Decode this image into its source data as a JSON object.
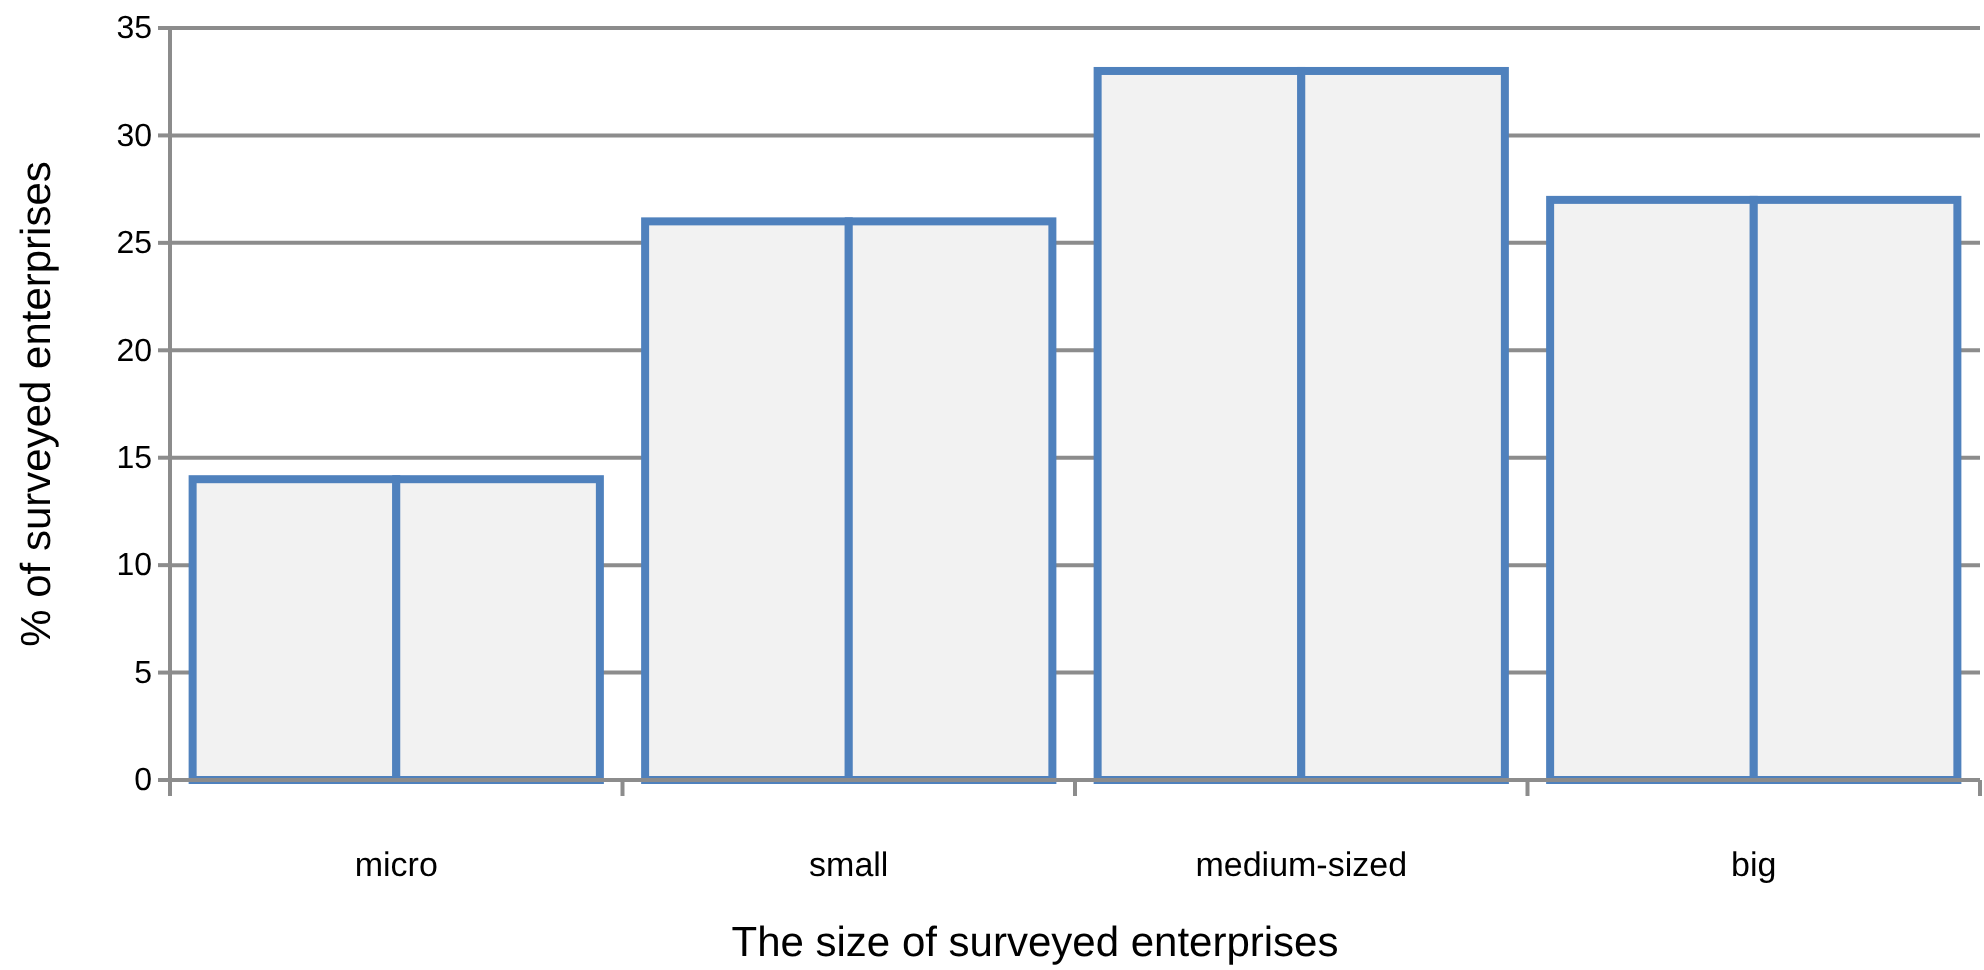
{
  "chart_data": {
    "type": "bar",
    "xlabel": "The size of surveyed enterprises",
    "ylabel": "% of surveyed enterprises",
    "categories": [
      "micro",
      "small",
      "medium-sized",
      "big"
    ],
    "series": [
      {
        "color": "#4f81bd",
        "values": [
          14,
          26,
          33,
          27
        ]
      },
      {
        "color": "#4f81bd",
        "values": [
          14,
          26,
          33,
          27
        ]
      }
    ],
    "ylim": [
      0,
      35
    ],
    "yticks": [
      0,
      5,
      10,
      15,
      20,
      25,
      30,
      35
    ],
    "grid": "y"
  }
}
